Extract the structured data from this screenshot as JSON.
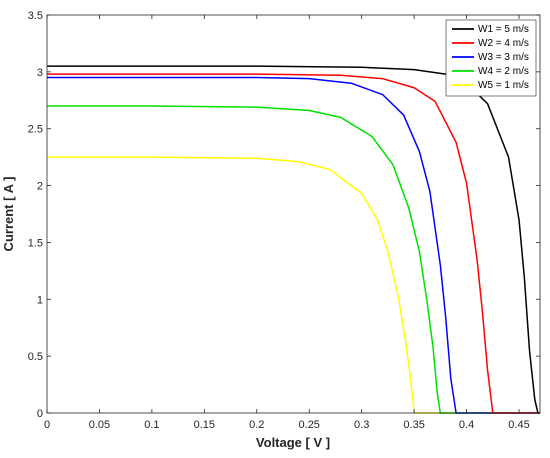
{
  "chart_data": {
    "type": "line",
    "title": "",
    "xlabel": "Voltage [ V ]",
    "ylabel": "Current [ A ]",
    "xlim": [
      0,
      0.47
    ],
    "ylim": [
      0,
      3.5
    ],
    "xticks": [
      0,
      0.05,
      0.1,
      0.15,
      0.2,
      0.25,
      0.3,
      0.35,
      0.4,
      0.45
    ],
    "xtick_labels": [
      "0",
      "0.05",
      "0.1",
      "0.15",
      "0.2",
      "0.25",
      "0.3",
      "0.35",
      "0.4",
      "0.45"
    ],
    "yticks": [
      0,
      0.5,
      1,
      1.5,
      2,
      2.5,
      3,
      3.5
    ],
    "ytick_labels": [
      "0",
      "0.5",
      "1",
      "1.5",
      "2",
      "2.5",
      "3",
      "3.5"
    ],
    "grid": false,
    "legend_position": "top-right",
    "series": [
      {
        "name": "W1 = 5 m/s",
        "color": "#000000",
        "isc": 3.05,
        "voc": 0.468,
        "x": [
          0,
          0.1,
          0.2,
          0.3,
          0.35,
          0.38,
          0.4,
          0.42,
          0.44,
          0.45,
          0.455,
          0.46,
          0.465,
          0.468,
          0.47
        ],
        "y": [
          3.05,
          3.05,
          3.05,
          3.04,
          3.02,
          2.98,
          2.9,
          2.72,
          2.25,
          1.7,
          1.2,
          0.55,
          0.12,
          0,
          0
        ]
      },
      {
        "name": "W2 = 4 m/s",
        "color": "#ff0000",
        "isc": 2.98,
        "voc": 0.425,
        "x": [
          0,
          0.1,
          0.2,
          0.28,
          0.32,
          0.35,
          0.37,
          0.39,
          0.4,
          0.41,
          0.415,
          0.42,
          0.425,
          0.47
        ],
        "y": [
          2.98,
          2.98,
          2.98,
          2.97,
          2.94,
          2.86,
          2.74,
          2.38,
          2.02,
          1.35,
          0.9,
          0.38,
          0,
          0
        ]
      },
      {
        "name": "W3 = 3 m/s",
        "color": "#0000ff",
        "isc": 2.95,
        "voc": 0.39,
        "x": [
          0,
          0.1,
          0.2,
          0.25,
          0.29,
          0.32,
          0.34,
          0.355,
          0.365,
          0.375,
          0.38,
          0.385,
          0.39,
          0.47
        ],
        "y": [
          2.95,
          2.95,
          2.95,
          2.94,
          2.9,
          2.8,
          2.62,
          2.3,
          1.95,
          1.3,
          0.85,
          0.3,
          0,
          0
        ]
      },
      {
        "name": "W4 = 2 m/s",
        "color": "#00e000",
        "isc": 2.7,
        "voc": 0.375,
        "x": [
          0,
          0.1,
          0.2,
          0.25,
          0.28,
          0.31,
          0.33,
          0.345,
          0.355,
          0.362,
          0.368,
          0.372,
          0.375,
          0.47
        ],
        "y": [
          2.7,
          2.7,
          2.69,
          2.66,
          2.6,
          2.43,
          2.18,
          1.8,
          1.42,
          1.0,
          0.58,
          0.18,
          0,
          0
        ]
      },
      {
        "name": "W5 = 1 m/s",
        "color": "#ffff00",
        "isc": 2.25,
        "voc": 0.35,
        "x": [
          0,
          0.1,
          0.2,
          0.24,
          0.27,
          0.3,
          0.315,
          0.325,
          0.335,
          0.342,
          0.346,
          0.349,
          0.35,
          0.47
        ],
        "y": [
          2.25,
          2.25,
          2.24,
          2.21,
          2.14,
          1.93,
          1.7,
          1.42,
          1.02,
          0.62,
          0.35,
          0.1,
          0,
          0
        ]
      }
    ]
  }
}
